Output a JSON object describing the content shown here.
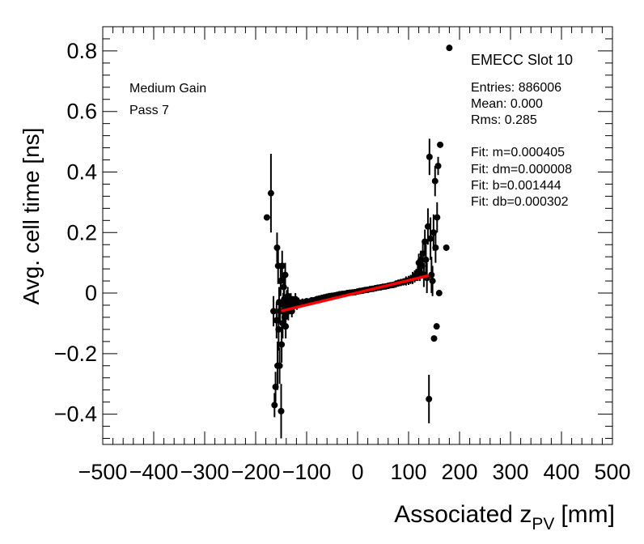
{
  "chart_data": {
    "type": "scatter",
    "title": "",
    "xlabel_main": "Associated z",
    "xlabel_sub": "PV",
    "xlabel_unit": "[mm]",
    "ylabel": "Avg. cell time [ns]",
    "xlim": [
      -500,
      500
    ],
    "ylim": [
      -0.5,
      0.88
    ],
    "x_ticks": [
      -500,
      -400,
      -300,
      -200,
      -100,
      0,
      100,
      200,
      300,
      400,
      500
    ],
    "x_tick_labels": [
      "−500",
      "−400",
      "−300",
      "−200",
      "−100",
      "0",
      "100",
      "200",
      "300",
      "400",
      "500"
    ],
    "y_ticks": [
      -0.4,
      -0.2,
      0,
      0.2,
      0.4,
      0.6,
      0.8
    ],
    "y_tick_labels": [
      "−0.4",
      "−0.2",
      "0",
      "0.2",
      "0.4",
      "0.6",
      "0.8"
    ],
    "grid": false,
    "marker_color": "#000000",
    "fit_color": "#ff0000",
    "fit_line": {
      "m": 0.000405,
      "b": 0.001444,
      "x_range": [
        -150,
        140
      ]
    },
    "annotations": {
      "gain": "Medium Gain",
      "pass": "Pass 7",
      "slot": "EMECC Slot 10",
      "stats": [
        "Entries: 886006",
        "Mean: 0.000",
        "Rms: 0.285"
      ],
      "fit": [
        "Fit: m=0.000405",
        "Fit: dm=0.000008",
        "Fit: b=0.001444",
        "Fit: db=0.000302"
      ]
    },
    "points": [
      {
        "x": -178,
        "y": 0.25,
        "e": 0.0
      },
      {
        "x": -170,
        "y": 0.33,
        "e": 0.13
      },
      {
        "x": -165,
        "y": -0.06,
        "e": 0.05
      },
      {
        "x": -163,
        "y": -0.37,
        "e": 0.04
      },
      {
        "x": -161,
        "y": -0.31,
        "e": 0.05
      },
      {
        "x": -159,
        "y": -0.09,
        "e": 0.06
      },
      {
        "x": -158,
        "y": 0.15,
        "e": 0.05
      },
      {
        "x": -157,
        "y": -0.24,
        "e": 0.08
      },
      {
        "x": -156,
        "y": 0.09,
        "e": 0.06
      },
      {
        "x": -155,
        "y": -0.12,
        "e": 0.07
      },
      {
        "x": -154,
        "y": -0.03,
        "e": 0.05
      },
      {
        "x": -153,
        "y": -0.24,
        "e": 0.06
      },
      {
        "x": -152,
        "y": -0.06,
        "e": 0.04
      },
      {
        "x": -151,
        "y": 0.04,
        "e": 0.05
      },
      {
        "x": -150,
        "y": -0.39,
        "e": 0.09
      },
      {
        "x": -149,
        "y": -0.17,
        "e": 0.06
      },
      {
        "x": -148,
        "y": 0.09,
        "e": 0.05
      },
      {
        "x": -147,
        "y": -0.1,
        "e": 0.05
      },
      {
        "x": -146,
        "y": -0.04,
        "e": 0.04
      },
      {
        "x": -145,
        "y": 0.02,
        "e": 0.04
      },
      {
        "x": -144,
        "y": -0.02,
        "e": 0.03
      },
      {
        "x": -143,
        "y": -0.08,
        "e": 0.04
      },
      {
        "x": -142,
        "y": 0.06,
        "e": 0.04
      },
      {
        "x": -141,
        "y": -0.11,
        "e": 0.04
      },
      {
        "x": -140,
        "y": -0.04,
        "e": 0.03
      },
      {
        "x": -139,
        "y": -0.02,
        "e": 0.03
      },
      {
        "x": -138,
        "y": -0.05,
        "e": 0.03
      },
      {
        "x": -137,
        "y": -0.01,
        "e": 0.03
      },
      {
        "x": -136,
        "y": -0.06,
        "e": 0.03
      },
      {
        "x": -135,
        "y": -0.03,
        "e": 0.02
      },
      {
        "x": -133,
        "y": -0.05,
        "e": 0.02
      },
      {
        "x": -131,
        "y": -0.02,
        "e": 0.02
      },
      {
        "x": -129,
        "y": -0.06,
        "e": 0.02
      },
      {
        "x": -127,
        "y": -0.03,
        "e": 0.02
      },
      {
        "x": -125,
        "y": -0.04,
        "e": 0.02
      },
      {
        "x": -122,
        "y": -0.02,
        "e": 0.02
      },
      {
        "x": -119,
        "y": -0.04,
        "e": 0.015
      },
      {
        "x": -116,
        "y": -0.03,
        "e": 0.015
      },
      {
        "x": -112,
        "y": -0.035,
        "e": 0.012
      },
      {
        "x": -108,
        "y": -0.03,
        "e": 0.012
      },
      {
        "x": -104,
        "y": -0.032,
        "e": 0.01
      },
      {
        "x": -100,
        "y": -0.027,
        "e": 0.01
      },
      {
        "x": -95,
        "y": -0.028,
        "e": 0.01
      },
      {
        "x": -90,
        "y": -0.024,
        "e": 0.01
      },
      {
        "x": -85,
        "y": -0.024,
        "e": 0.01
      },
      {
        "x": -80,
        "y": -0.02,
        "e": 0.01
      },
      {
        "x": -75,
        "y": -0.018,
        "e": 0.01
      },
      {
        "x": -70,
        "y": -0.016,
        "e": 0.01
      },
      {
        "x": -65,
        "y": -0.014,
        "e": 0.01
      },
      {
        "x": -60,
        "y": -0.012,
        "e": 0.01
      },
      {
        "x": -55,
        "y": -0.01,
        "e": 0.01
      },
      {
        "x": -50,
        "y": -0.009,
        "e": 0.01
      },
      {
        "x": -45,
        "y": -0.008,
        "e": 0.01
      },
      {
        "x": -40,
        "y": -0.006,
        "e": 0.01
      },
      {
        "x": -35,
        "y": -0.004,
        "e": 0.01
      },
      {
        "x": -30,
        "y": -0.003,
        "e": 0.01
      },
      {
        "x": -25,
        "y": -0.002,
        "e": 0.01
      },
      {
        "x": -20,
        "y": 0.0,
        "e": 0.01
      },
      {
        "x": -15,
        "y": 0.001,
        "e": 0.01
      },
      {
        "x": -10,
        "y": 0.002,
        "e": 0.01
      },
      {
        "x": -5,
        "y": 0.003,
        "e": 0.01
      },
      {
        "x": 0,
        "y": 0.005,
        "e": 0.01
      },
      {
        "x": 5,
        "y": 0.007,
        "e": 0.01
      },
      {
        "x": 10,
        "y": 0.008,
        "e": 0.01
      },
      {
        "x": 15,
        "y": 0.01,
        "e": 0.01
      },
      {
        "x": 20,
        "y": 0.011,
        "e": 0.01
      },
      {
        "x": 25,
        "y": 0.013,
        "e": 0.01
      },
      {
        "x": 30,
        "y": 0.014,
        "e": 0.01
      },
      {
        "x": 35,
        "y": 0.016,
        "e": 0.01
      },
      {
        "x": 40,
        "y": 0.018,
        "e": 0.01
      },
      {
        "x": 45,
        "y": 0.019,
        "e": 0.01
      },
      {
        "x": 50,
        "y": 0.021,
        "e": 0.01
      },
      {
        "x": 55,
        "y": 0.022,
        "e": 0.01
      },
      {
        "x": 60,
        "y": 0.024,
        "e": 0.01
      },
      {
        "x": 65,
        "y": 0.026,
        "e": 0.01
      },
      {
        "x": 70,
        "y": 0.027,
        "e": 0.01
      },
      {
        "x": 75,
        "y": 0.03,
        "e": 0.012
      },
      {
        "x": 80,
        "y": 0.033,
        "e": 0.012
      },
      {
        "x": 85,
        "y": 0.035,
        "e": 0.012
      },
      {
        "x": 90,
        "y": 0.037,
        "e": 0.012
      },
      {
        "x": 95,
        "y": 0.04,
        "e": 0.015
      },
      {
        "x": 100,
        "y": 0.042,
        "e": 0.015
      },
      {
        "x": 104,
        "y": 0.045,
        "e": 0.015
      },
      {
        "x": 108,
        "y": 0.05,
        "e": 0.02
      },
      {
        "x": 112,
        "y": 0.055,
        "e": 0.02
      },
      {
        "x": 115,
        "y": 0.06,
        "e": 0.02
      },
      {
        "x": 118,
        "y": 0.065,
        "e": 0.025
      },
      {
        "x": 120,
        "y": 0.1,
        "e": 0.03
      },
      {
        "x": 122,
        "y": 0.07,
        "e": 0.03
      },
      {
        "x": 124,
        "y": 0.11,
        "e": 0.03
      },
      {
        "x": 126,
        "y": 0.09,
        "e": 0.03
      },
      {
        "x": 128,
        "y": 0.13,
        "e": 0.04
      },
      {
        "x": 130,
        "y": 0.06,
        "e": 0.04
      },
      {
        "x": 132,
        "y": 0.17,
        "e": 0.04
      },
      {
        "x": 134,
        "y": 0.11,
        "e": 0.05
      },
      {
        "x": 136,
        "y": 0.05,
        "e": 0.05
      },
      {
        "x": 138,
        "y": 0.22,
        "e": 0.06
      },
      {
        "x": 140,
        "y": -0.35,
        "e": 0.08
      },
      {
        "x": 141,
        "y": 0.45,
        "e": 0.06
      },
      {
        "x": 143,
        "y": 0.18,
        "e": 0.07
      },
      {
        "x": 145,
        "y": 0.06,
        "e": 0.06
      },
      {
        "x": 147,
        "y": 0.04,
        "e": 0.05
      },
      {
        "x": 149,
        "y": 0.2,
        "e": 0.06
      },
      {
        "x": 150,
        "y": -0.15,
        "e": 0.0
      },
      {
        "x": 152,
        "y": 0.37,
        "e": 0.05
      },
      {
        "x": 153,
        "y": 0.15,
        "e": 0.05
      },
      {
        "x": 155,
        "y": -0.11,
        "e": 0.0
      },
      {
        "x": 156,
        "y": 0.25,
        "e": 0.05
      },
      {
        "x": 158,
        "y": 0.42,
        "e": 0.03
      },
      {
        "x": 160,
        "y": 0.0,
        "e": 0.0
      },
      {
        "x": 162,
        "y": 0.49,
        "e": 0.0
      },
      {
        "x": 174,
        "y": 0.15,
        "e": 0.0
      },
      {
        "x": 180,
        "y": 0.81,
        "e": 0.0
      }
    ]
  }
}
